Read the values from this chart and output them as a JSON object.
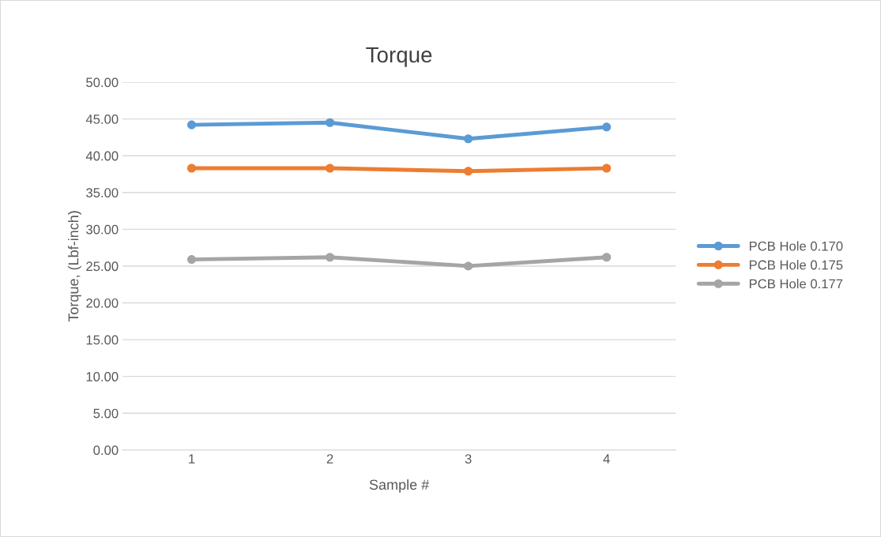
{
  "chart_data": {
    "type": "line",
    "title": "Torque",
    "xlabel": "Sample #",
    "ylabel": "Torque, (Lbf-inch)",
    "categories": [
      "1",
      "2",
      "3",
      "4"
    ],
    "series": [
      {
        "name": "PCB Hole 0.170",
        "color": "#5b9bd5",
        "values": [
          44.2,
          44.5,
          42.3,
          43.9
        ]
      },
      {
        "name": "PCB Hole 0.175",
        "color": "#ed7d31",
        "values": [
          38.3,
          38.3,
          37.9,
          38.3
        ]
      },
      {
        "name": "PCB Hole 0.177",
        "color": "#a5a5a5",
        "values": [
          25.9,
          26.2,
          25.0,
          26.2
        ]
      }
    ],
    "ylim": [
      0,
      50
    ],
    "yticks": [
      {
        "value": 0,
        "label": "0.00"
      },
      {
        "value": 5,
        "label": "5.00"
      },
      {
        "value": 10,
        "label": "10.00"
      },
      {
        "value": 15,
        "label": "15.00"
      },
      {
        "value": 20,
        "label": "20.00"
      },
      {
        "value": 25,
        "label": "25.00"
      },
      {
        "value": 30,
        "label": "30.00"
      },
      {
        "value": 35,
        "label": "35.00"
      },
      {
        "value": 40,
        "label": "40.00"
      },
      {
        "value": 45,
        "label": "45.00"
      },
      {
        "value": 50,
        "label": "50.00"
      }
    ],
    "grid": "y",
    "legend": "right",
    "marker": "circle",
    "line_style": "solid"
  }
}
